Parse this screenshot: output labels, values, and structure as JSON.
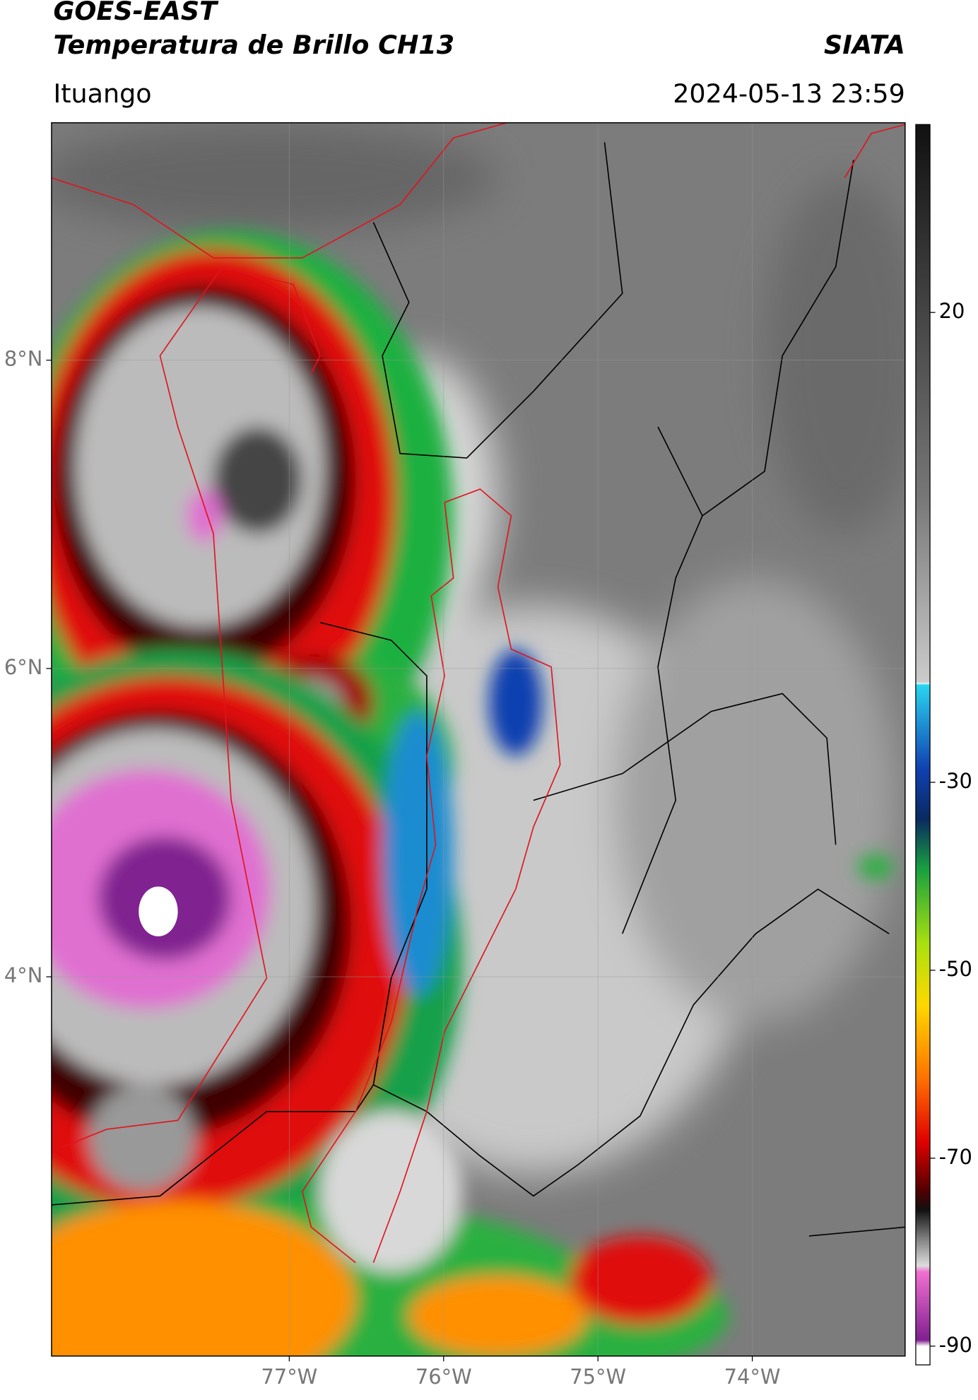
{
  "header": {
    "title": "GOES-EAST",
    "subtitle": "Temperatura de Brillo CH13",
    "source": "SIATA",
    "location": "Ituango",
    "datetime": "2024-05-13 23:59"
  },
  "map": {
    "xlim": [
      -78.54,
      -73.01
    ],
    "ylim": [
      1.54,
      9.54
    ],
    "xticks": [
      {
        "value": -77,
        "label": "77°W"
      },
      {
        "value": -76,
        "label": "76°W"
      },
      {
        "value": -75,
        "label": "75°W"
      },
      {
        "value": -74,
        "label": "74°W"
      }
    ],
    "yticks": [
      {
        "value": 8,
        "label": "8°N"
      },
      {
        "value": 6,
        "label": "6°N"
      },
      {
        "value": 4,
        "label": "4°N"
      }
    ],
    "grid": true
  },
  "colorbar": {
    "lim": [
      -92,
      40
    ],
    "ticks": [
      20,
      -30,
      -50,
      -70,
      -90
    ]
  }
}
